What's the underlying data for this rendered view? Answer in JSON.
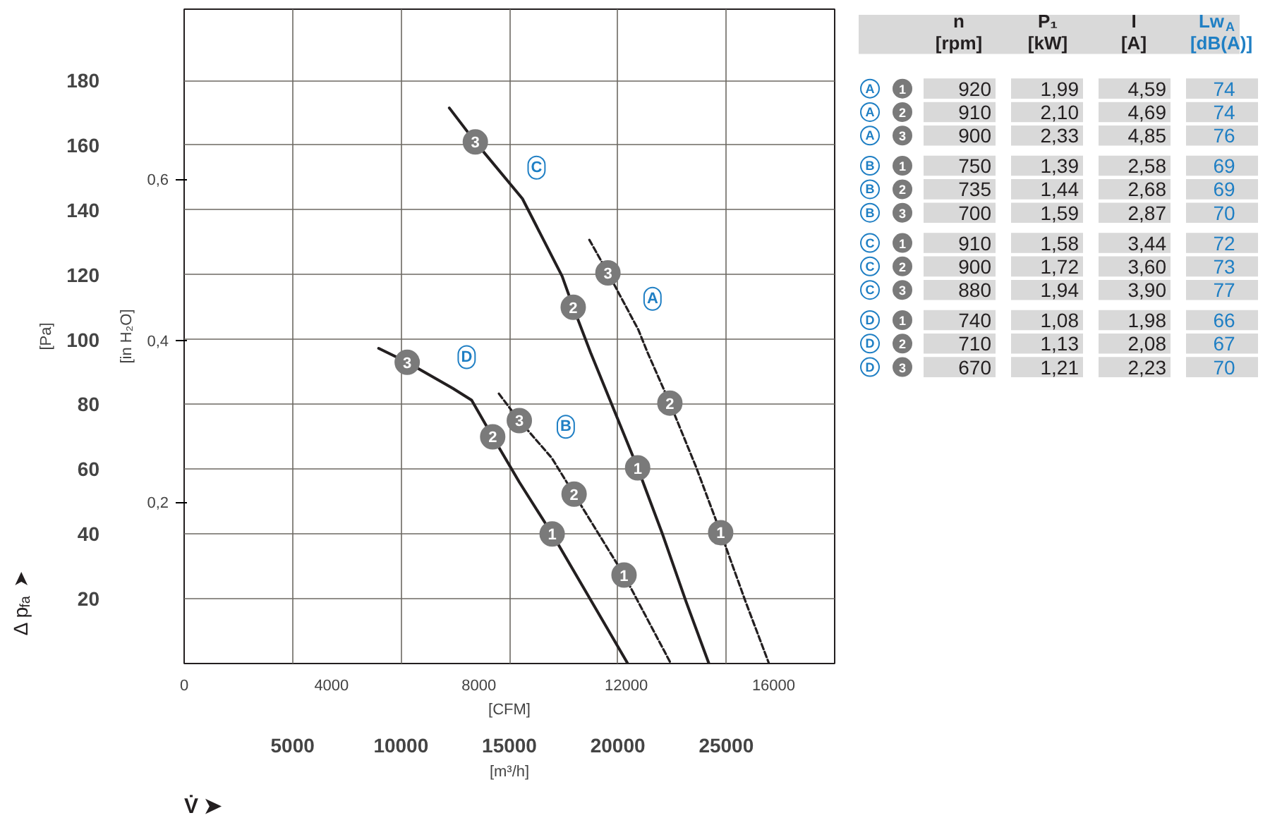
{
  "chart_data": [
    {
      "type": "line",
      "xlabel": "[m³/h]",
      "x2label": "[CFM]",
      "ylabel": "[Pa]",
      "y2label": "[in H₂O]",
      "xlim": [
        0,
        30000
      ],
      "xticks": [
        5000,
        10000,
        15000,
        20000,
        25000
      ],
      "x2lim": [
        0,
        17657
      ],
      "x2ticks": [
        0,
        4000,
        8000,
        12000,
        16000
      ],
      "ylim": [
        0,
        202
      ],
      "yticks": [
        20,
        40,
        60,
        80,
        100,
        120,
        140,
        160,
        180
      ],
      "y2lim": [
        0,
        0.811
      ],
      "y2ticks": [
        {
          "value": 0.2,
          "label": "0,2"
        },
        {
          "value": 0.4,
          "label": "0,4"
        },
        {
          "value": 0.6,
          "label": "0,6"
        }
      ],
      "grid": true,
      "series": [
        {
          "name": "A",
          "color": "#231f20",
          "line_style": "dashed",
          "x": [
            18686,
            19543,
            20949,
            21371,
            22400,
            23600,
            24743,
            25886,
            26971
          ],
          "values": [
            130.8,
            120.6,
            103,
            96,
            80.4,
            60.8,
            40.4,
            19.2,
            0
          ]
        },
        {
          "name": "B",
          "color": "#231f20",
          "line_style": "dashed",
          "x": [
            14514,
            15457,
            16949,
            17983,
            20286,
            22446
          ],
          "values": [
            83.3,
            75,
            63.5,
            52.3,
            27.3,
            0
          ]
        },
        {
          "name": "C",
          "color": "#231f20",
          "line_style": "solid",
          "x": [
            12229,
            13429,
            15600,
            17430,
            17943,
            18743,
            20914,
            22057,
            23143,
            24200
          ],
          "values": [
            171.5,
            161,
            143.5,
            119.6,
            110,
            96,
            60.4,
            40,
            19.2,
            0
          ]
        },
        {
          "name": "D",
          "color": "#231f20",
          "line_style": "solid",
          "x": [
            8971,
            10286,
            12377,
            13257,
            14229,
            15457,
            16971,
            18514,
            20457
          ],
          "values": [
            97.3,
            93,
            85,
            81.3,
            70,
            56,
            40,
            22.3,
            0
          ]
        }
      ],
      "annotations": [
        {
          "text": "1",
          "x": 24743,
          "y": 40.4
        },
        {
          "text": "2",
          "x": 22400,
          "y": 80.4
        },
        {
          "text": "3",
          "x": 19543,
          "y": 120.6
        },
        {
          "text": "1",
          "x": 20286,
          "y": 27.3
        },
        {
          "text": "2",
          "x": 17983,
          "y": 52.3
        },
        {
          "text": "3",
          "x": 15457,
          "y": 75
        },
        {
          "text": "1",
          "x": 20914,
          "y": 60.4
        },
        {
          "text": "2",
          "x": 17943,
          "y": 110
        },
        {
          "text": "3",
          "x": 13429,
          "y": 161
        },
        {
          "text": "1",
          "x": 16971,
          "y": 40
        },
        {
          "text": "2",
          "x": 14229,
          "y": 70
        },
        {
          "text": "3",
          "x": 10286,
          "y": 93
        },
        "Δ p$_{fa}$ ➤",
        "V̇ ➤"
      ]
    },
    {
      "type": "other",
      "categories": [
        "n [rpm]",
        "P₁ [kW]",
        "I [A]",
        "Lw$_{A}$ [dB(A)]"
      ],
      "y_categories": [
        "A 1",
        "A 2",
        "A 3",
        "B 1",
        "B 2",
        "B 3",
        "C 1",
        "C 2",
        "C 3",
        "D 1",
        "D 2",
        "D 3"
      ],
      "cell_labels": [
        [
          "920",
          "1,99",
          "4,59",
          "74"
        ],
        [
          "910",
          "2,10",
          "4,69",
          "74"
        ],
        [
          "900",
          "2,33",
          "4,85",
          "76"
        ],
        [
          "750",
          "1,39",
          "2,58",
          "69"
        ],
        [
          "735",
          "1,44",
          "2,68",
          "69"
        ],
        [
          "700",
          "1,59",
          "2,87",
          "70"
        ],
        [
          "910",
          "1,58",
          "3,44",
          "72"
        ],
        [
          "900",
          "1,72",
          "3,60",
          "73"
        ],
        [
          "880",
          "1,94",
          "3,90",
          "77"
        ],
        [
          "740",
          "1,08",
          "1,98",
          "66"
        ],
        [
          "710",
          "1,13",
          "2,08",
          "67"
        ],
        [
          "670",
          "1,21",
          "2,23",
          "70"
        ]
      ]
    }
  ]
}
